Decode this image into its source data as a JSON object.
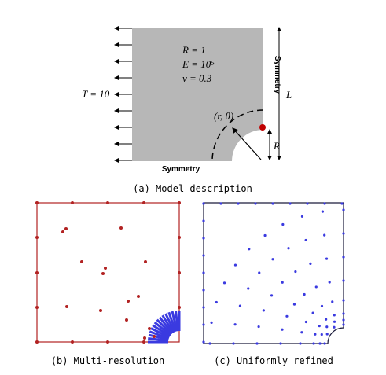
{
  "figure": {
    "panel_a": {
      "r_label": "R = 1",
      "e_label": "E = 10⁵",
      "nu_label": "ν = 0.3",
      "traction_label": "T = 10",
      "polar_label": "(r, θ)",
      "radius_label": "R",
      "length_label": "L",
      "bottom_label": "Symmetry",
      "right_label": "Symmetry",
      "caption": "(a)  Model description"
    },
    "panel_b": {
      "caption": "(b)  Multi-resolution"
    },
    "panel_c": {
      "caption": "(c)  Uniformly refined"
    }
  }
}
